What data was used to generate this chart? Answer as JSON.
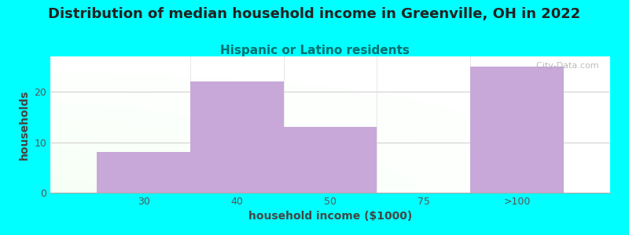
{
  "title": "Distribution of median household income in Greenville, OH in 2022",
  "subtitle": "Hispanic or Latino residents",
  "xlabel": "household income ($1000)",
  "ylabel": "households",
  "background_outer": "#00FFFF",
  "bar_color": "#c8a8d8",
  "categories": [
    "30",
    "40",
    "50",
    "75",
    ">100"
  ],
  "values": [
    8,
    22,
    13,
    0,
    25
  ],
  "edges": [
    0,
    1,
    2,
    3,
    4,
    5
  ],
  "ylim": [
    0,
    27
  ],
  "title_fontsize": 13,
  "subtitle_fontsize": 11,
  "subtitle_color": "#007070",
  "axis_label_fontsize": 10,
  "tick_fontsize": 9,
  "title_color": "#222222",
  "watermark": "  City-Data.com",
  "watermark_color": "#aaaaaa",
  "tick_color": "#555555",
  "yticks": [
    0,
    10,
    20
  ]
}
